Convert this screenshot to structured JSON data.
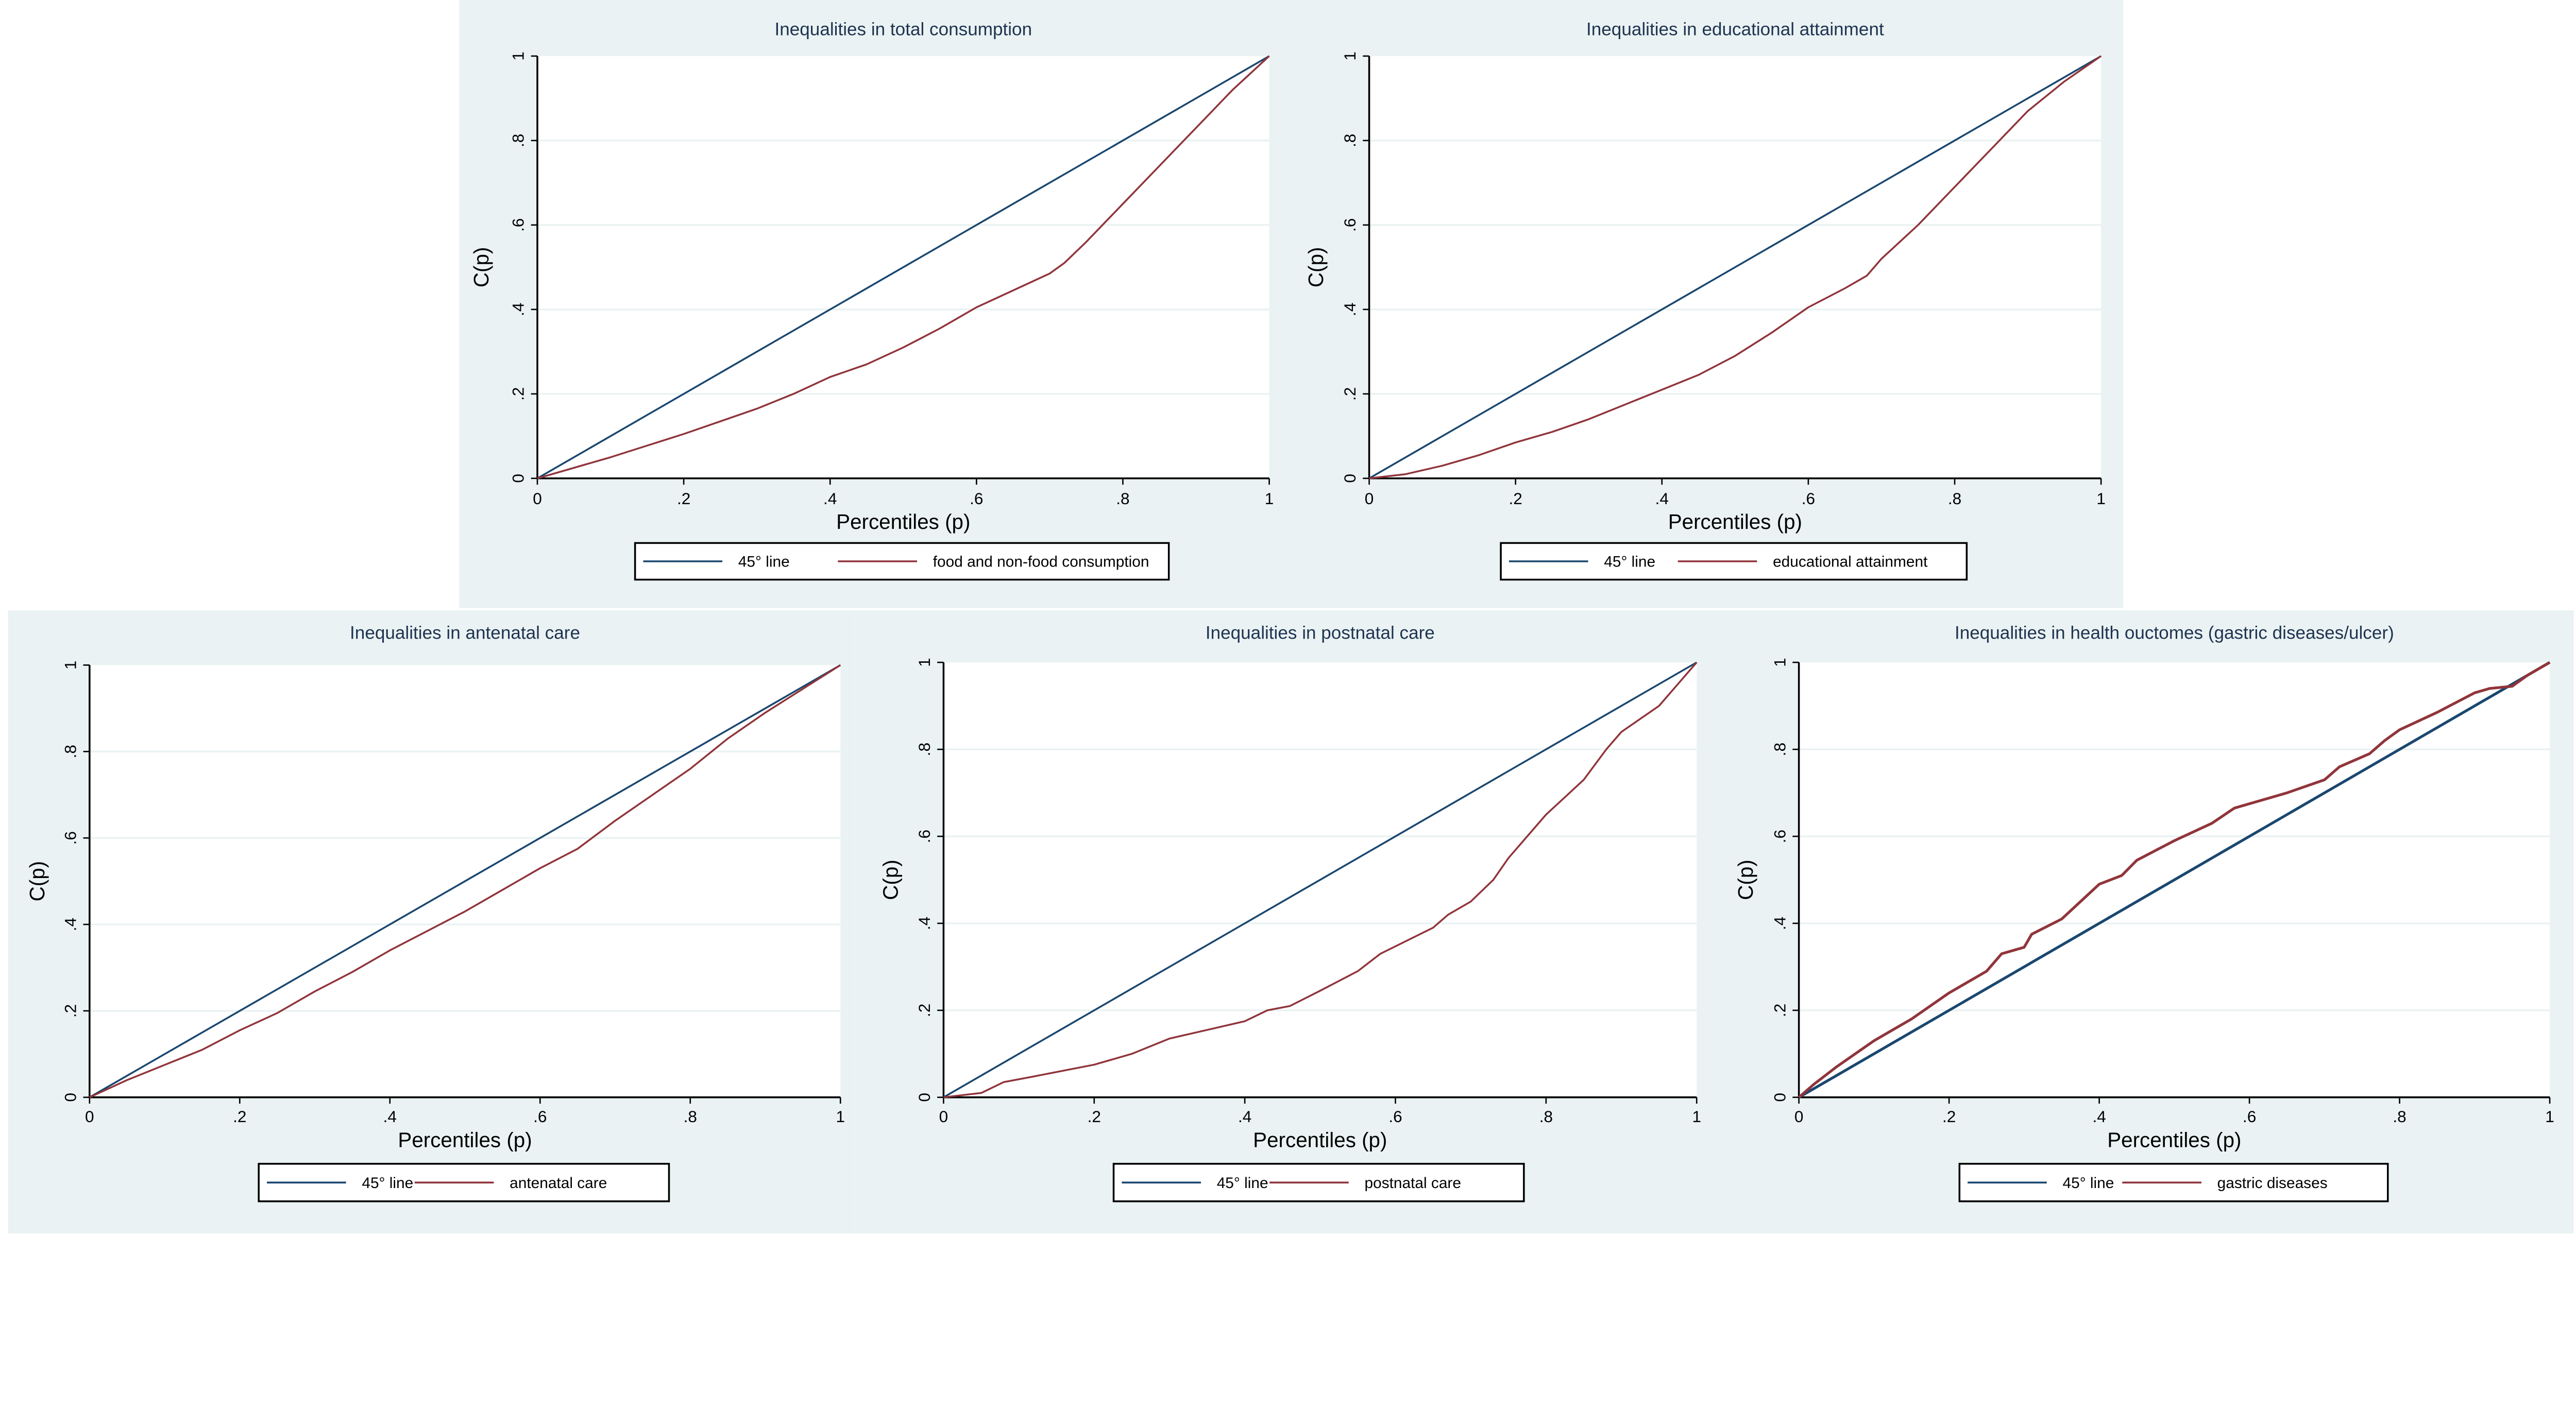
{
  "colors": {
    "background": "#eaf2f3",
    "plot": "#ffffff",
    "reference": "#1a476f",
    "curve": "#90353b",
    "grid": "#eaf2f3"
  },
  "chart_data": [
    {
      "type": "line",
      "title": "Inequalities in total consumption",
      "xlabel": "Percentiles (p)",
      "ylabel": "C(p)",
      "xlim": [
        0,
        1
      ],
      "ylim": [
        0,
        1
      ],
      "xticks": [
        "0",
        ".2",
        ".4",
        ".6",
        ".8",
        "1"
      ],
      "yticks": [
        "0",
        ".2",
        ".4",
        ".6",
        ".8",
        "1"
      ],
      "grid": true,
      "legend": "bottom",
      "series": [
        {
          "name": "45° line",
          "x": [
            0,
            1
          ],
          "y": [
            0,
            1
          ]
        },
        {
          "name": "food and non-food consumption",
          "x": [
            0,
            0.1,
            0.2,
            0.25,
            0.3,
            0.35,
            0.4,
            0.45,
            0.5,
            0.55,
            0.6,
            0.65,
            0.7,
            0.72,
            0.75,
            0.8,
            0.85,
            0.9,
            0.95,
            1
          ],
          "y": [
            0,
            0.05,
            0.105,
            0.135,
            0.165,
            0.2,
            0.24,
            0.27,
            0.31,
            0.355,
            0.405,
            0.445,
            0.485,
            0.51,
            0.56,
            0.65,
            0.74,
            0.83,
            0.92,
            1
          ]
        }
      ]
    },
    {
      "type": "line",
      "title": "Inequalities in educational attainment",
      "xlabel": "Percentiles (p)",
      "ylabel": "C(p)",
      "xlim": [
        0,
        1
      ],
      "ylim": [
        0,
        1
      ],
      "xticks": [
        "0",
        ".2",
        ".4",
        ".6",
        ".8",
        "1"
      ],
      "yticks": [
        "0",
        ".2",
        ".4",
        ".6",
        ".8",
        "1"
      ],
      "grid": true,
      "legend": "bottom",
      "series": [
        {
          "name": "45° line",
          "x": [
            0,
            1
          ],
          "y": [
            0,
            1
          ]
        },
        {
          "name": "educational attainment",
          "x": [
            0,
            0.05,
            0.1,
            0.15,
            0.2,
            0.25,
            0.3,
            0.35,
            0.4,
            0.45,
            0.5,
            0.55,
            0.6,
            0.65,
            0.68,
            0.7,
            0.75,
            0.8,
            0.85,
            0.9,
            0.95,
            1
          ],
          "y": [
            0,
            0.01,
            0.03,
            0.055,
            0.085,
            0.11,
            0.14,
            0.175,
            0.21,
            0.245,
            0.29,
            0.345,
            0.405,
            0.45,
            0.48,
            0.52,
            0.6,
            0.69,
            0.78,
            0.87,
            0.94,
            1
          ]
        }
      ]
    },
    {
      "type": "line",
      "title": "Inequalities in antenatal care",
      "xlabel": "Percentiles (p)",
      "ylabel": "C(p)",
      "xlim": [
        0,
        1
      ],
      "ylim": [
        0,
        1
      ],
      "xticks": [
        "0",
        ".2",
        ".4",
        ".6",
        ".8",
        "1"
      ],
      "yticks": [
        "0",
        ".2",
        ".4",
        ".6",
        ".8",
        "1"
      ],
      "grid": true,
      "legend": "bottom",
      "series": [
        {
          "name": "45° line",
          "x": [
            0,
            1
          ],
          "y": [
            0,
            1
          ]
        },
        {
          "name": "antenatal care",
          "x": [
            0,
            0.05,
            0.1,
            0.15,
            0.2,
            0.25,
            0.3,
            0.35,
            0.4,
            0.45,
            0.5,
            0.55,
            0.6,
            0.65,
            0.7,
            0.75,
            0.8,
            0.85,
            0.9,
            0.95,
            1
          ],
          "y": [
            0,
            0.04,
            0.075,
            0.11,
            0.155,
            0.195,
            0.245,
            0.29,
            0.34,
            0.385,
            0.43,
            0.48,
            0.53,
            0.575,
            0.64,
            0.7,
            0.76,
            0.83,
            0.89,
            0.945,
            1
          ]
        }
      ]
    },
    {
      "type": "line",
      "title": "Inequalities in postnatal care",
      "xlabel": "Percentiles (p)",
      "ylabel": "C(p)",
      "xlim": [
        0,
        1
      ],
      "ylim": [
        0,
        1
      ],
      "xticks": [
        "0",
        ".2",
        ".4",
        ".6",
        ".8",
        "1"
      ],
      "yticks": [
        "0",
        ".2",
        ".4",
        ".6",
        ".8",
        "1"
      ],
      "grid": true,
      "legend": "bottom",
      "series": [
        {
          "name": "45° line",
          "x": [
            0,
            1
          ],
          "y": [
            0,
            1
          ]
        },
        {
          "name": "postnatal care",
          "x": [
            0,
            0.05,
            0.08,
            0.12,
            0.2,
            0.25,
            0.3,
            0.35,
            0.4,
            0.43,
            0.46,
            0.5,
            0.55,
            0.58,
            0.65,
            0.67,
            0.7,
            0.73,
            0.75,
            0.8,
            0.85,
            0.88,
            0.9,
            0.95,
            0.97,
            1
          ],
          "y": [
            0,
            0.01,
            0.035,
            0.048,
            0.075,
            0.1,
            0.135,
            0.155,
            0.175,
            0.2,
            0.21,
            0.245,
            0.29,
            0.33,
            0.39,
            0.42,
            0.45,
            0.5,
            0.55,
            0.65,
            0.73,
            0.8,
            0.84,
            0.9,
            0.94,
            1
          ]
        }
      ]
    },
    {
      "type": "line",
      "title": "Inequalities in health ouctomes (gastric diseases/ulcer)",
      "xlabel": "Percentiles (p)",
      "ylabel": "C(p)",
      "xlim": [
        0,
        1
      ],
      "ylim": [
        0,
        1
      ],
      "xticks": [
        "0",
        ".2",
        ".4",
        ".6",
        ".8",
        "1"
      ],
      "yticks": [
        "0",
        ".2",
        ".4",
        ".6",
        ".8",
        "1"
      ],
      "grid": true,
      "legend": "bottom",
      "series": [
        {
          "name": "45° line",
          "x": [
            0,
            1
          ],
          "y": [
            0,
            1
          ]
        },
        {
          "name": "gastric diseases",
          "x": [
            0,
            0.02,
            0.05,
            0.1,
            0.15,
            0.2,
            0.25,
            0.27,
            0.3,
            0.31,
            0.35,
            0.4,
            0.43,
            0.45,
            0.5,
            0.55,
            0.58,
            0.65,
            0.7,
            0.72,
            0.76,
            0.78,
            0.8,
            0.85,
            0.9,
            0.92,
            0.95,
            0.97,
            1
          ],
          "y": [
            0,
            0.03,
            0.07,
            0.13,
            0.18,
            0.24,
            0.29,
            0.33,
            0.345,
            0.375,
            0.41,
            0.49,
            0.51,
            0.545,
            0.59,
            0.63,
            0.665,
            0.7,
            0.73,
            0.76,
            0.79,
            0.82,
            0.845,
            0.885,
            0.93,
            0.94,
            0.945,
            0.97,
            1
          ]
        }
      ]
    }
  ]
}
